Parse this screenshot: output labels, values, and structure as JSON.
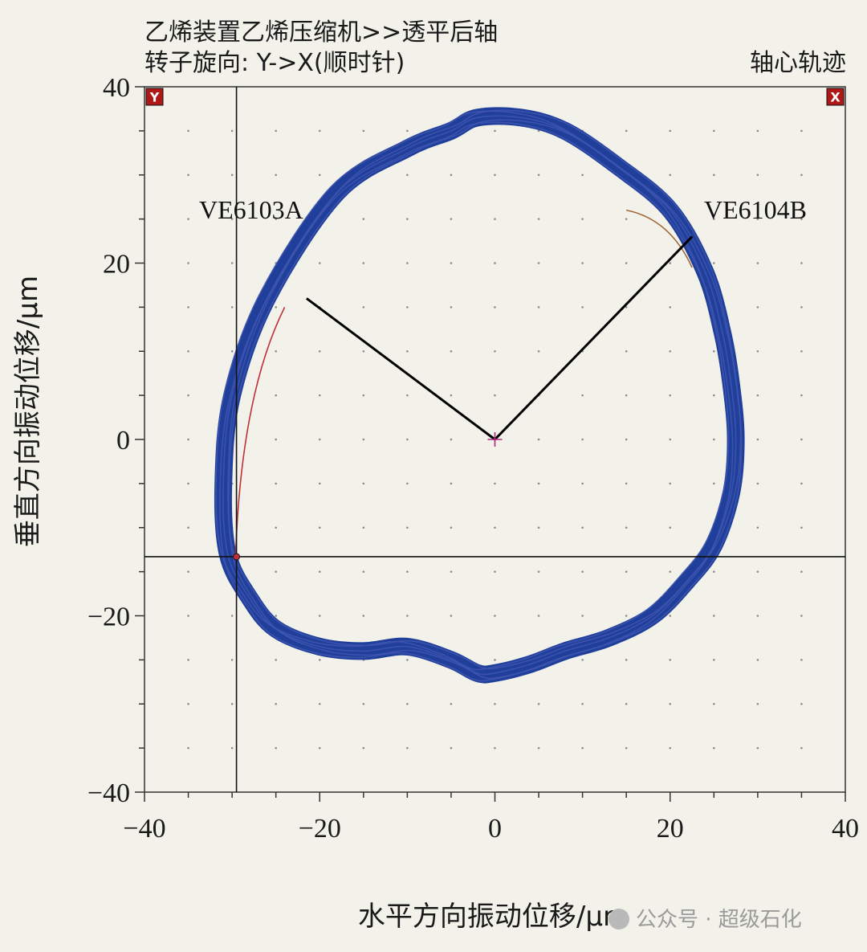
{
  "header": {
    "line1": "乙烯装置乙烯压缩机>>透平后轴",
    "line2": "转子旋向: Y->X(顺时针)",
    "right": "轴心轨迹"
  },
  "watermark": "公众号 · 超级石化",
  "chart_data": {
    "type": "orbit",
    "title": "轴心轨迹",
    "xlabel": "水平方向振动位移/μm",
    "ylabel": "垂直方向振动位移/μm",
    "xlim": [
      -40,
      40
    ],
    "ylim": [
      -40,
      40
    ],
    "xticks": [
      "-40",
      "-20",
      "0",
      "20",
      "40"
    ],
    "yticks": [
      "-40",
      "-20",
      "0",
      "20",
      "40"
    ],
    "grid": "dotted",
    "corner_markers": [
      "Y",
      "X"
    ],
    "colors": {
      "orbit": "#1f3f9a",
      "orbit_edge": "#3f56b0",
      "probe_line": "#000000",
      "trace_red": "#c0303a",
      "trace_brown": "#a0683a",
      "center": "#b0287a"
    },
    "orbit": {
      "x": [
        -2,
        3,
        8,
        14,
        20,
        24,
        26,
        27,
        27.5,
        27,
        25,
        22,
        18,
        13,
        8,
        4,
        0,
        -2,
        -5,
        -10,
        -15,
        -20,
        -25,
        -28,
        -30.5,
        -31,
        -30,
        -26,
        -18,
        -10,
        -5,
        -2
      ],
      "y": [
        36.5,
        36.5,
        35,
        31,
        26,
        19,
        12,
        6,
        0,
        -6,
        -12,
        -16,
        -20,
        -22.5,
        -24,
        -25.5,
        -26.5,
        -26.5,
        -25,
        -23.5,
        -24,
        -23.5,
        -21.5,
        -18,
        -13,
        -5,
        5,
        16,
        28,
        33,
        35,
        36.5
      ]
    },
    "cursor": {
      "x": -29.5,
      "y": -13.3
    },
    "probes": [
      {
        "label": "VE6103A",
        "tip": [
          -21.5,
          16
        ]
      },
      {
        "label": "VE6104B",
        "tip": [
          22.5,
          23
        ]
      }
    ],
    "center_mark": [
      0,
      0
    ]
  }
}
